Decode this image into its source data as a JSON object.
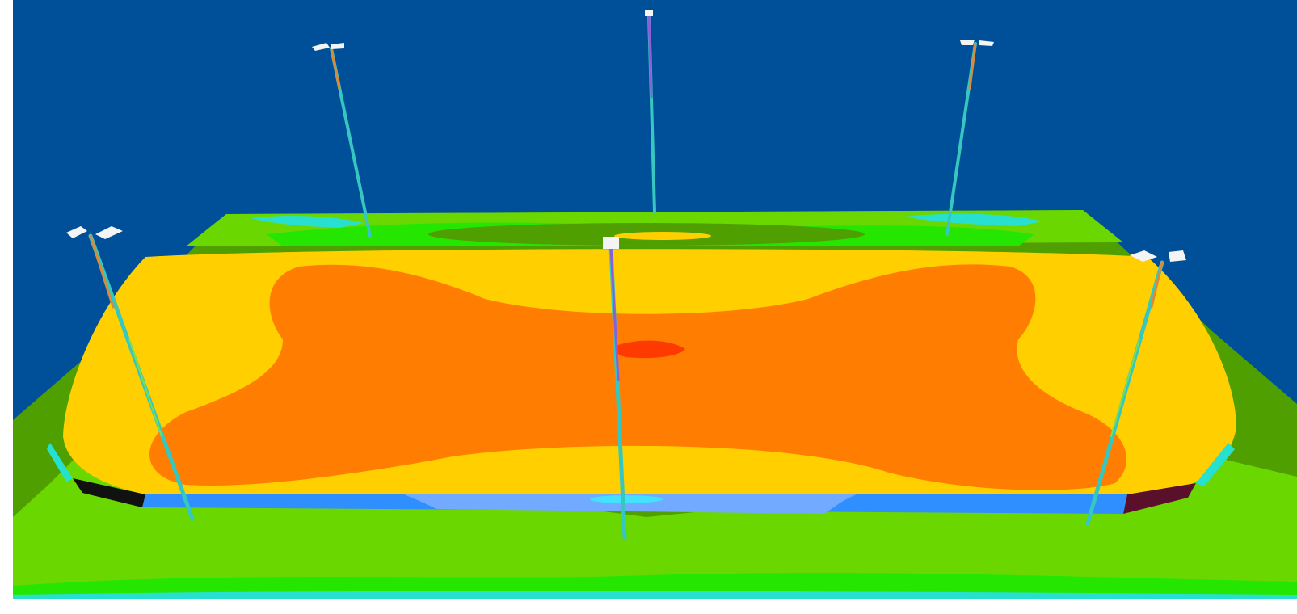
{
  "viewport": {
    "title": ""
  },
  "colors": {
    "sky": "#004f99",
    "border": "#ffffff",
    "pole_body": "#35c7c0",
    "pole_warm": "#d98a3a",
    "pole_mid": "#7dde50",
    "pole_cool": "#8a5fd8",
    "luminaire": "#f4f4f4",
    "illuminance_levels": {
      "very_low": "#28e0d0",
      "low": "#4f9f00",
      "low_mid": "#6ad800",
      "mid": "#25e600",
      "mid_high": "#ffcf00",
      "high": "#ff7d00",
      "peak": "#ff3a00"
    },
    "court_edge": "#2f8fff",
    "court_edge_light": "#71aaff",
    "court_edge_glow": "#44e0ff",
    "edge_dark_left": "#111111",
    "edge_dark_right": "#5a102a"
  },
  "scene": {
    "poles": [
      {
        "name": "back-left",
        "luminaires": 2
      },
      {
        "name": "back-center",
        "luminaires": 1
      },
      {
        "name": "back-right",
        "luminaires": 2
      },
      {
        "name": "front-left",
        "luminaires": 2
      },
      {
        "name": "front-center",
        "luminaires": 1
      },
      {
        "name": "front-right",
        "luminaires": 2
      }
    ]
  }
}
